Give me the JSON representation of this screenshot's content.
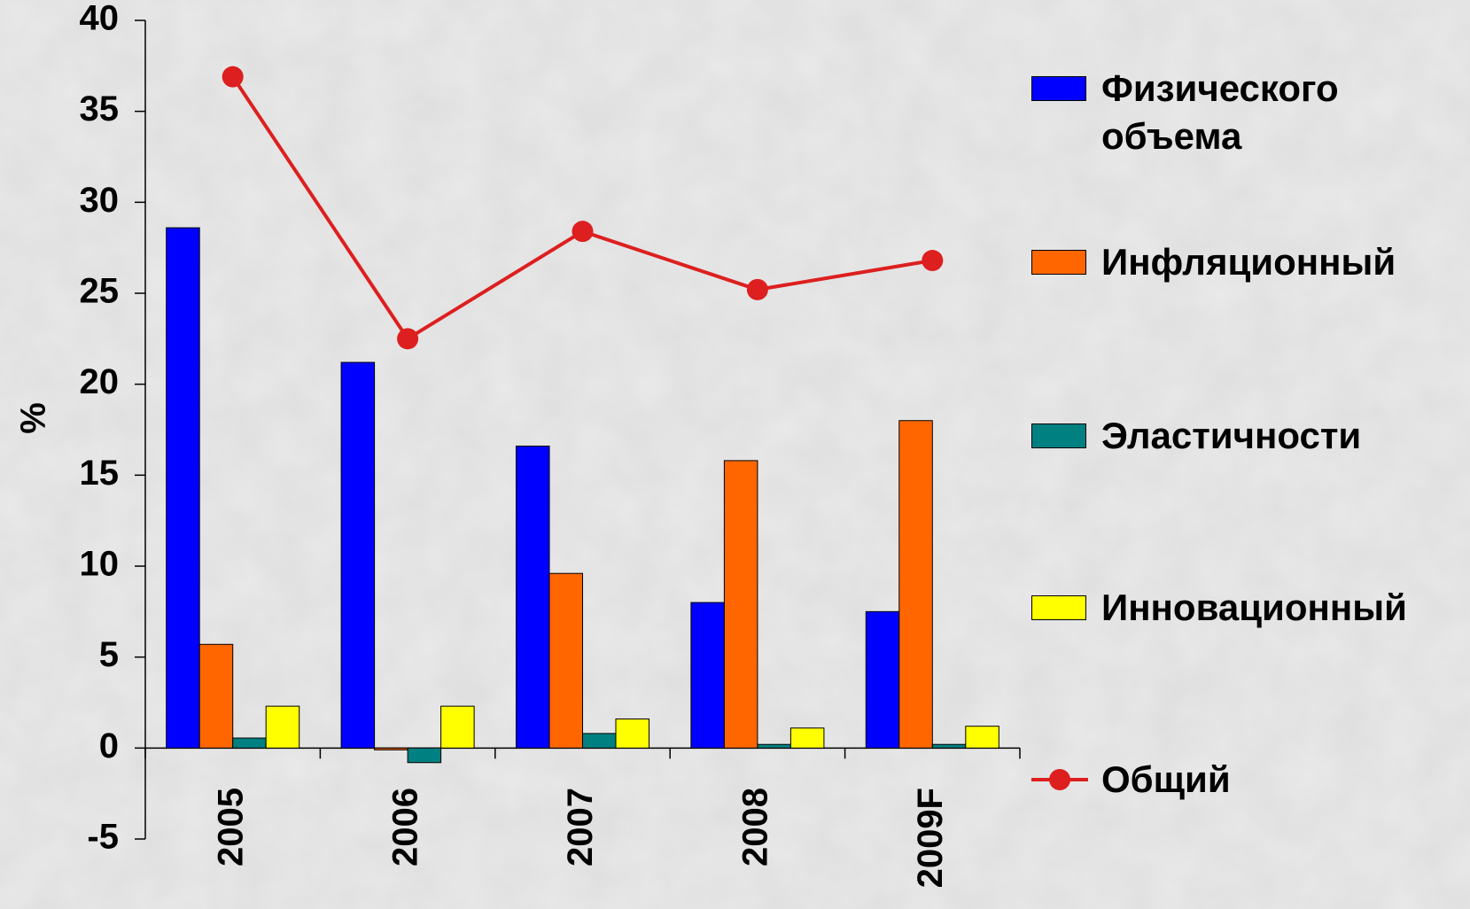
{
  "chart_data": {
    "type": "bar",
    "y_label": "%",
    "categories": [
      "2005",
      "2006",
      "2007",
      "2008",
      "2009F"
    ],
    "series": [
      {
        "name": "Физического объема",
        "color": "#0000ff",
        "values": [
          28.6,
          21.2,
          16.6,
          8.0,
          7.5
        ]
      },
      {
        "name": "Инфляционный",
        "color": "#ff6600",
        "values": [
          5.7,
          -0.1,
          9.6,
          15.8,
          18.0
        ]
      },
      {
        "name": "Эластичности",
        "color": "#008080",
        "values": [
          0.55,
          -0.8,
          0.8,
          0.2,
          0.2
        ]
      },
      {
        "name": "Инновационный",
        "color": "#ffff00",
        "values": [
          2.3,
          2.3,
          1.6,
          1.1,
          1.2
        ]
      },
      {
        "name": "Общий",
        "color": "#dd1f1f",
        "type": "line",
        "values": [
          36.9,
          22.5,
          28.4,
          25.2,
          26.8
        ]
      }
    ],
    "ylim": [
      -5,
      40
    ],
    "yticks": [
      -5,
      0,
      5,
      10,
      15,
      20,
      25,
      30,
      35,
      40
    ],
    "legend": "right"
  }
}
